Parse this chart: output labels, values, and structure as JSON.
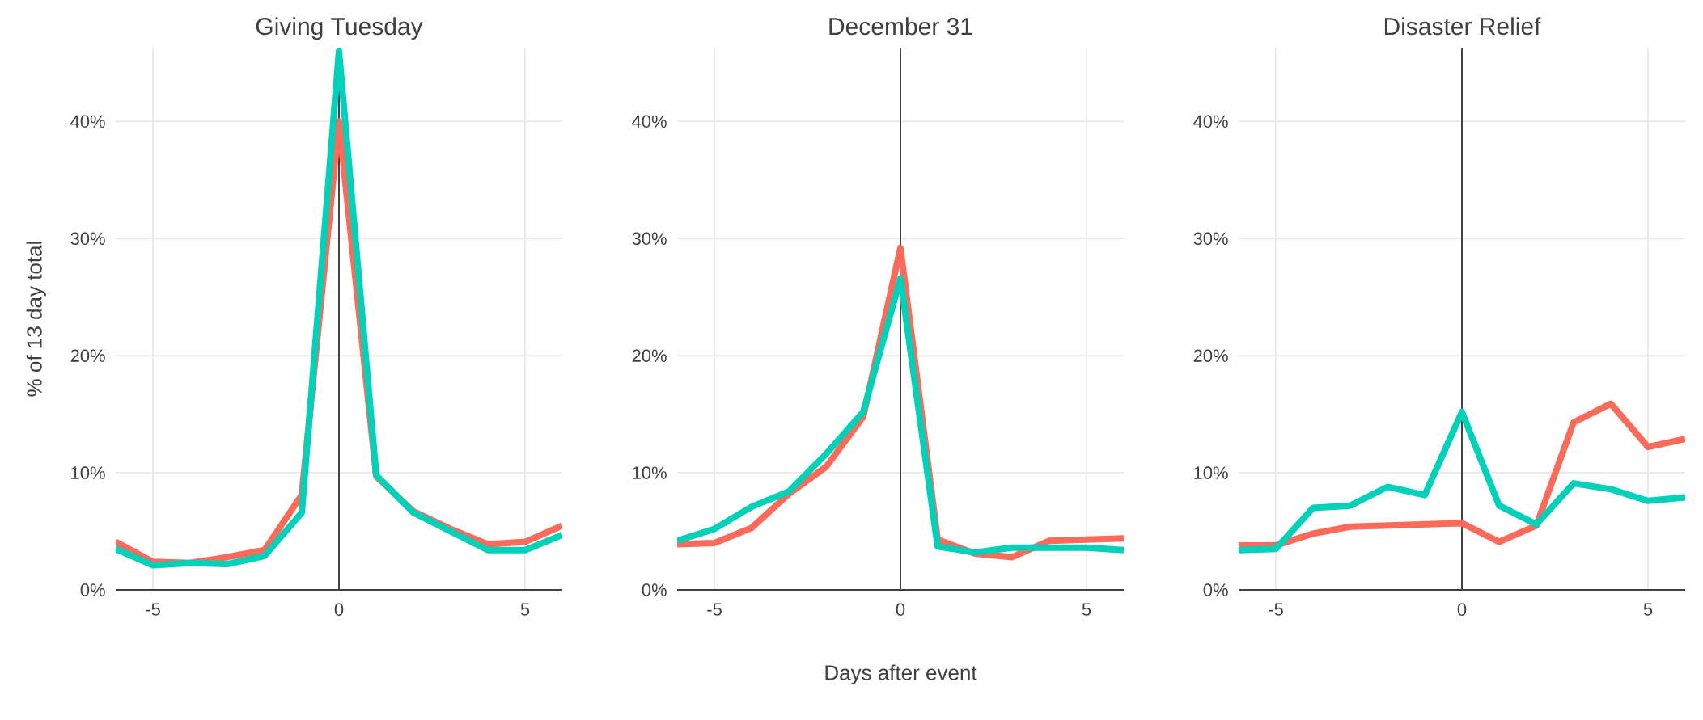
{
  "chart_data": [
    {
      "type": "line",
      "title": "Giving Tuesday",
      "ylabel": "% of 13 day total",
      "x": [
        -6,
        -5,
        -4,
        -3,
        -2,
        -1,
        0,
        1,
        2,
        3,
        4,
        5,
        6
      ],
      "xlim": [
        -6,
        6
      ],
      "ylim": [
        0,
        46.3
      ],
      "xticks": [
        -5,
        0,
        5
      ],
      "yticks": [
        {
          "value": 0,
          "label": "0%"
        },
        {
          "value": 10,
          "label": "10%"
        },
        {
          "value": 20,
          "label": "20%"
        },
        {
          "value": 30,
          "label": "30%"
        },
        {
          "value": 40,
          "label": "40%"
        }
      ],
      "grid": true,
      "ref_lines": [
        {
          "axis": "x",
          "value": 0,
          "color": "#444444"
        }
      ],
      "series": [
        {
          "color": "#fc6a5a",
          "values": [
            4.1,
            2.4,
            2.3,
            2.8,
            3.4,
            8.1,
            40,
            9.7,
            6.7,
            5.2,
            3.9,
            4.1,
            5.5
          ]
        },
        {
          "color": "#00d1b8",
          "values": [
            3.5,
            2.1,
            2.3,
            2.2,
            2.9,
            6.6,
            46,
            9.8,
            6.6,
            5.0,
            3.4,
            3.4,
            4.7
          ]
        }
      ]
    },
    {
      "type": "line",
      "title": "December 31",
      "xlabel": "Days after event",
      "x": [
        -6,
        -5,
        -4,
        -3,
        -2,
        -1,
        0,
        1,
        2,
        3,
        4,
        5,
        6
      ],
      "xlim": [
        -6,
        6
      ],
      "ylim": [
        0,
        46.3
      ],
      "xticks": [
        -5,
        0,
        5
      ],
      "yticks": [
        {
          "value": 0,
          "label": "0%"
        },
        {
          "value": 10,
          "label": "10%"
        },
        {
          "value": 20,
          "label": "20%"
        },
        {
          "value": 30,
          "label": "30%"
        },
        {
          "value": 40,
          "label": "40%"
        }
      ],
      "grid": true,
      "ref_lines": [
        {
          "axis": "x",
          "value": 0,
          "color": "#444444"
        }
      ],
      "series": [
        {
          "color": "#fc6a5a",
          "values": [
            3.9,
            4.0,
            5.3,
            8.2,
            10.5,
            14.8,
            29.2,
            4.3,
            3.1,
            2.8,
            4.2,
            4.3,
            4.4
          ]
        },
        {
          "color": "#00d1b8",
          "values": [
            4.2,
            5.2,
            7.1,
            8.4,
            11.6,
            15.2,
            26.6,
            3.7,
            3.2,
            3.6,
            3.6,
            3.6,
            3.4
          ]
        }
      ]
    },
    {
      "type": "line",
      "title": "Disaster Relief",
      "x": [
        -6,
        -5,
        -4,
        -3,
        -2,
        -1,
        0,
        1,
        2,
        3,
        4,
        5,
        6
      ],
      "xlim": [
        -6,
        6
      ],
      "ylim": [
        0,
        46.3
      ],
      "xticks": [
        -5,
        0,
        5
      ],
      "yticks": [
        {
          "value": 0,
          "label": "0%"
        },
        {
          "value": 10,
          "label": "10%"
        },
        {
          "value": 20,
          "label": "20%"
        },
        {
          "value": 30,
          "label": "30%"
        },
        {
          "value": 40,
          "label": "40%"
        }
      ],
      "grid": true,
      "ref_lines": [
        {
          "axis": "x",
          "value": 0,
          "color": "#444444"
        }
      ],
      "series": [
        {
          "color": "#fc6a5a",
          "values": [
            3.8,
            3.8,
            4.8,
            5.4,
            5.5,
            5.6,
            5.7,
            4.1,
            5.5,
            14.3,
            15.9,
            12.2,
            12.9
          ]
        },
        {
          "color": "#00d1b8",
          "values": [
            3.4,
            3.5,
            7.0,
            7.2,
            8.8,
            8.1,
            15.2,
            7.2,
            5.6,
            9.1,
            8.6,
            7.6,
            7.9
          ]
        }
      ]
    }
  ]
}
